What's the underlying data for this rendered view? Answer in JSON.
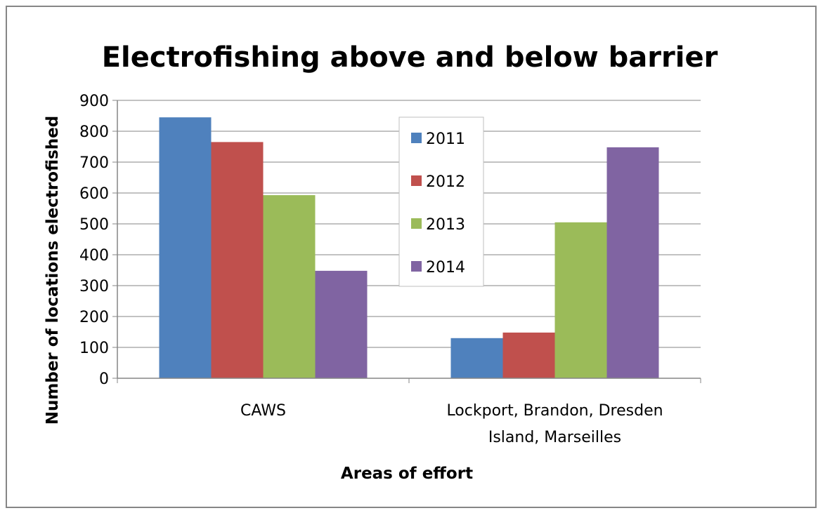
{
  "chart_data": {
    "type": "bar",
    "title": "Electrofishing above and below barrier",
    "xlabel": "Areas of effort",
    "ylabel": "Number of locations electrofished",
    "ylim": [
      0,
      900
    ],
    "yticks": [
      0,
      100,
      200,
      300,
      400,
      500,
      600,
      700,
      800,
      900
    ],
    "grid": true,
    "legend": "center",
    "categories": [
      [
        "CAWS"
      ],
      [
        "Lockport, Brandon, Dresden",
        "Island, Marseilles"
      ]
    ],
    "series": [
      {
        "name": "2011",
        "color": "#4F81BD",
        "values": [
          845,
          130
        ]
      },
      {
        "name": "2012",
        "color": "#C0504D",
        "values": [
          765,
          148
        ]
      },
      {
        "name": "2013",
        "color": "#9BBB59",
        "values": [
          593,
          505
        ]
      },
      {
        "name": "2014",
        "color": "#8064A2",
        "values": [
          348,
          748
        ]
      }
    ]
  }
}
